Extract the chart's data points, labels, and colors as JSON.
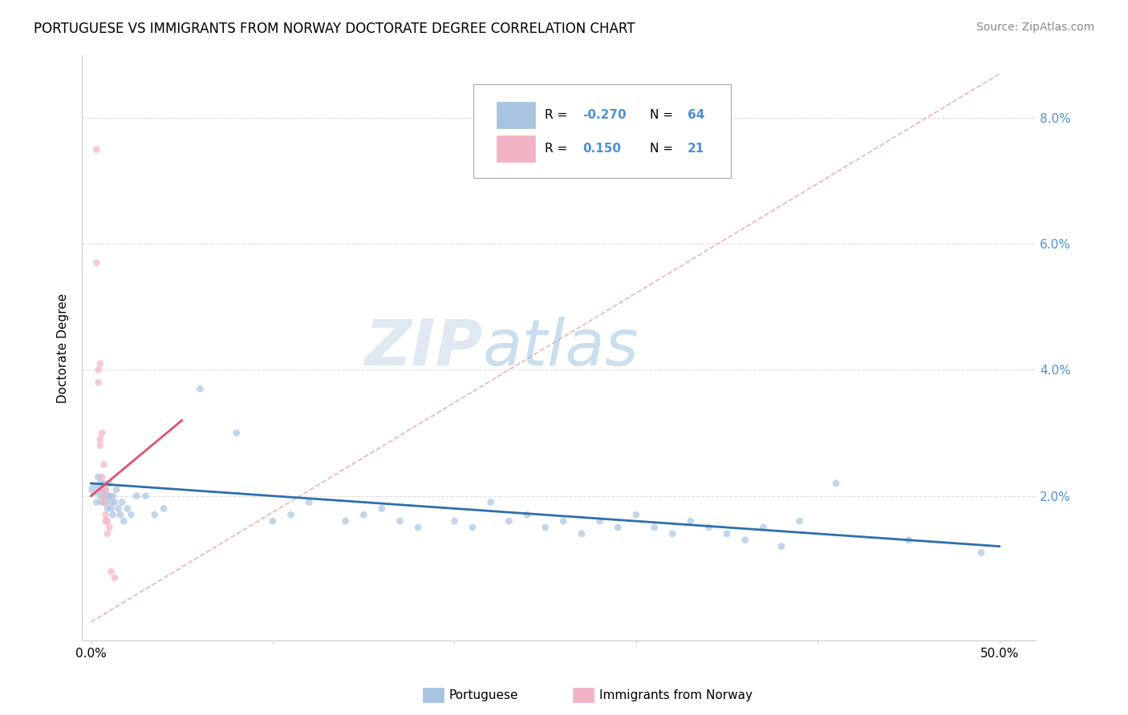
{
  "title": "PORTUGUESE VS IMMIGRANTS FROM NORWAY DOCTORATE DEGREE CORRELATION CHART",
  "source": "Source: ZipAtlas.com",
  "ylabel": "Doctorate Degree",
  "xtick_labels": [
    "0.0%",
    "",
    "",
    "",
    "",
    "50.0%"
  ],
  "ytick_labels": [
    "2.0%",
    "4.0%",
    "6.0%",
    "8.0%"
  ],
  "ytick_vals": [
    0.02,
    0.04,
    0.06,
    0.08
  ],
  "xtick_vals": [
    0.0,
    0.1,
    0.2,
    0.3,
    0.4,
    0.5
  ],
  "xlim": [
    -0.005,
    0.52
  ],
  "ylim": [
    -0.003,
    0.09
  ],
  "blue_scatter_color": "#a8c4e0",
  "pink_scatter_color": "#f2b4c4",
  "blue_line_color": "#2c6fad",
  "pink_line_color": "#e05070",
  "diagonal_color": "#e8b4b8",
  "grid_color": "#dddddd",
  "legend_R_blue": "-0.270",
  "legend_N_blue": "64",
  "legend_R_pink": "0.150",
  "legend_N_pink": "21",
  "legend_label_blue": "Portuguese",
  "legend_label_pink": "Immigrants from Norway",
  "right_axis_color": "#4a90d9",
  "blue_scatter": [
    [
      0.002,
      0.021
    ],
    [
      0.003,
      0.019
    ],
    [
      0.004,
      0.023
    ],
    [
      0.005,
      0.02
    ],
    [
      0.005,
      0.022
    ],
    [
      0.006,
      0.021
    ],
    [
      0.006,
      0.019
    ],
    [
      0.007,
      0.022
    ],
    [
      0.007,
      0.02
    ],
    [
      0.008,
      0.021
    ],
    [
      0.008,
      0.019
    ],
    [
      0.009,
      0.02
    ],
    [
      0.009,
      0.018
    ],
    [
      0.01,
      0.022
    ],
    [
      0.01,
      0.02
    ],
    [
      0.011,
      0.019
    ],
    [
      0.011,
      0.018
    ],
    [
      0.012,
      0.02
    ],
    [
      0.012,
      0.017
    ],
    [
      0.013,
      0.019
    ],
    [
      0.014,
      0.021
    ],
    [
      0.015,
      0.018
    ],
    [
      0.016,
      0.017
    ],
    [
      0.017,
      0.019
    ],
    [
      0.018,
      0.016
    ],
    [
      0.02,
      0.018
    ],
    [
      0.022,
      0.017
    ],
    [
      0.025,
      0.02
    ],
    [
      0.03,
      0.02
    ],
    [
      0.035,
      0.017
    ],
    [
      0.04,
      0.018
    ],
    [
      0.06,
      0.037
    ],
    [
      0.08,
      0.03
    ],
    [
      0.1,
      0.016
    ],
    [
      0.11,
      0.017
    ],
    [
      0.12,
      0.019
    ],
    [
      0.14,
      0.016
    ],
    [
      0.15,
      0.017
    ],
    [
      0.16,
      0.018
    ],
    [
      0.17,
      0.016
    ],
    [
      0.18,
      0.015
    ],
    [
      0.2,
      0.016
    ],
    [
      0.21,
      0.015
    ],
    [
      0.22,
      0.019
    ],
    [
      0.23,
      0.016
    ],
    [
      0.24,
      0.017
    ],
    [
      0.25,
      0.015
    ],
    [
      0.26,
      0.016
    ],
    [
      0.27,
      0.014
    ],
    [
      0.28,
      0.016
    ],
    [
      0.29,
      0.015
    ],
    [
      0.3,
      0.017
    ],
    [
      0.31,
      0.015
    ],
    [
      0.32,
      0.014
    ],
    [
      0.33,
      0.016
    ],
    [
      0.34,
      0.015
    ],
    [
      0.35,
      0.014
    ],
    [
      0.36,
      0.013
    ],
    [
      0.37,
      0.015
    ],
    [
      0.38,
      0.012
    ],
    [
      0.39,
      0.016
    ],
    [
      0.41,
      0.022
    ],
    [
      0.45,
      0.013
    ],
    [
      0.49,
      0.011
    ]
  ],
  "blue_sizes": [
    120,
    40,
    40,
    40,
    40,
    40,
    40,
    40,
    40,
    40,
    40,
    40,
    40,
    40,
    40,
    40,
    40,
    40,
    40,
    40,
    40,
    40,
    40,
    40,
    40,
    40,
    40,
    40,
    40,
    40,
    40,
    40,
    40,
    40,
    40,
    40,
    40,
    40,
    40,
    40,
    40,
    40,
    40,
    40,
    40,
    40,
    40,
    40,
    40,
    40,
    40,
    40,
    40,
    40,
    40,
    40,
    40,
    40,
    40,
    40,
    40,
    40,
    40,
    40
  ],
  "pink_scatter": [
    [
      0.003,
      0.075
    ],
    [
      0.003,
      0.057
    ],
    [
      0.004,
      0.04
    ],
    [
      0.004,
      0.038
    ],
    [
      0.005,
      0.041
    ],
    [
      0.005,
      0.029
    ],
    [
      0.005,
      0.028
    ],
    [
      0.006,
      0.03
    ],
    [
      0.006,
      0.023
    ],
    [
      0.006,
      0.021
    ],
    [
      0.007,
      0.025
    ],
    [
      0.007,
      0.02
    ],
    [
      0.007,
      0.019
    ],
    [
      0.008,
      0.021
    ],
    [
      0.008,
      0.017
    ],
    [
      0.008,
      0.016
    ],
    [
      0.009,
      0.016
    ],
    [
      0.009,
      0.014
    ],
    [
      0.01,
      0.015
    ],
    [
      0.011,
      0.008
    ],
    [
      0.013,
      0.007
    ]
  ],
  "pink_sizes": [
    40,
    40,
    40,
    40,
    40,
    40,
    40,
    40,
    40,
    40,
    40,
    40,
    40,
    40,
    40,
    40,
    40,
    40,
    40,
    40,
    40
  ]
}
